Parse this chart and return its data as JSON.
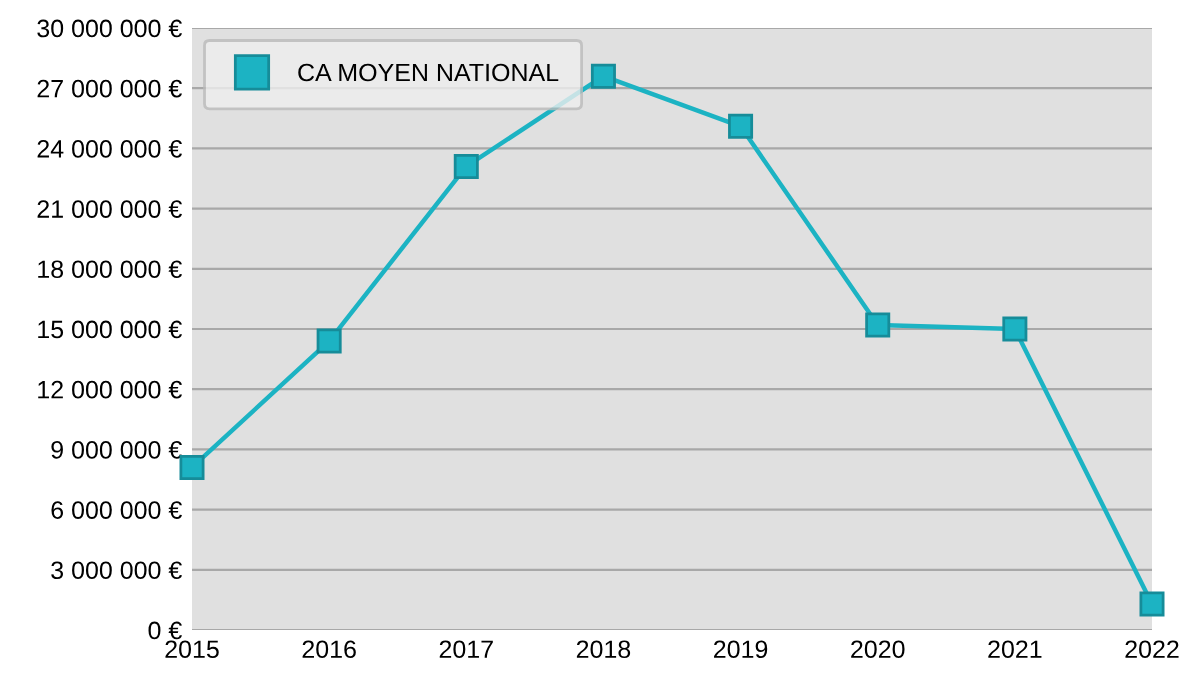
{
  "chart_data": {
    "type": "line",
    "categories": [
      "2015",
      "2016",
      "2017",
      "2018",
      "2019",
      "2020",
      "2021",
      "2022"
    ],
    "series": [
      {
        "name": "CA MOYEN NATIONAL",
        "color": "#1cb3c3",
        "values": [
          8100000,
          14400000,
          23100000,
          27600000,
          25100000,
          15200000,
          15000000,
          1300000
        ]
      }
    ],
    "ylim": [
      0,
      30000000
    ],
    "yticks": [
      {
        "value": 0,
        "label": "0 €"
      },
      {
        "value": 3000000,
        "label": "3 000 000 €"
      },
      {
        "value": 6000000,
        "label": "6 000 000 €"
      },
      {
        "value": 9000000,
        "label": "9 000 000 €"
      },
      {
        "value": 12000000,
        "label": "12 000 000 €"
      },
      {
        "value": 15000000,
        "label": "15 000 000 €"
      },
      {
        "value": 18000000,
        "label": "18 000 000 €"
      },
      {
        "value": 21000000,
        "label": "21 000 000 €"
      },
      {
        "value": 24000000,
        "label": "24 000 000 €"
      },
      {
        "value": 27000000,
        "label": "27 000 000 €"
      },
      {
        "value": 30000000,
        "label": "30 000 000 €"
      }
    ],
    "grid": "y",
    "legend": "top left",
    "marker": "square",
    "line_style": "solid"
  }
}
